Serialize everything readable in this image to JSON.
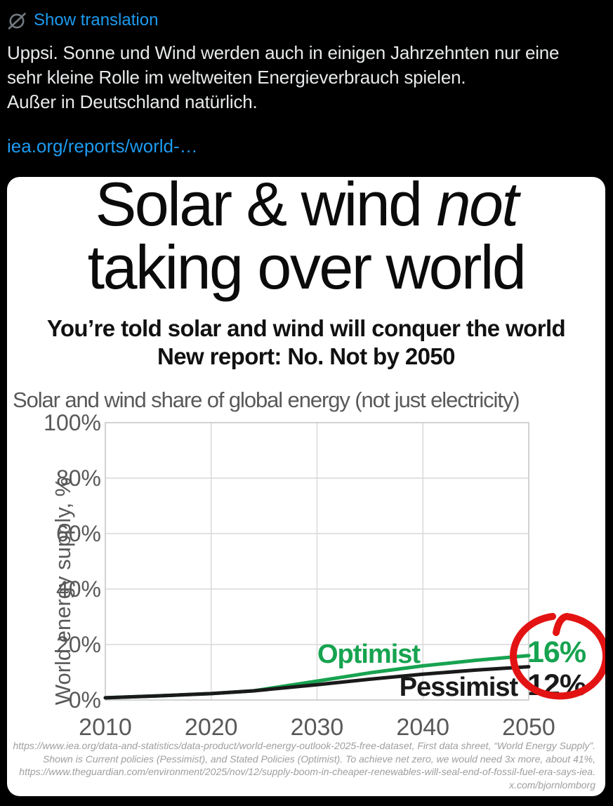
{
  "header": {
    "translation_label": "Show translation"
  },
  "tweet": {
    "line1": "Uppsi. Sonne und Wind werden auch in einigen Jahrzehnten nur eine",
    "line2": "sehr kleine Rolle im weltweiten Energieverbrauch spielen.",
    "line3": "Außer in Deutschland natürlich.",
    "link": "iea.org/reports/world-…"
  },
  "card": {
    "title": {
      "line1_regular": "Solar & wind ",
      "line1_italic": "not",
      "line2": "taking over world"
    },
    "subtitle": {
      "line1": "You’re told solar and wind will conquer the world",
      "line2": "New report: No. Not by 2050"
    },
    "footnote": {
      "line1": "https://www.iea.org/data-and-statistics/data-product/world-energy-outlook-2025-free-dataset, First data shreet, “World Energy Supply”.",
      "line2": "Shown is Current policies (Pessimist), and Stated Policies (Optimist). To achieve net zero, we would need 3x more, about 41%,",
      "line3": "https://www.theguardian.com/environment/2025/nov/12/supply-boom-in-cheaper-renewables-will-seal-end-of-fossil-fuel-era-says-iea.",
      "line4": "x.com/bjornlomborg"
    }
  },
  "chart_data": {
    "type": "line",
    "title": "Solar and wind share of global energy (not just electricity)",
    "xlabel": "",
    "ylabel": "World energy supply, %",
    "xlim": [
      2010,
      2050
    ],
    "ylim": [
      0,
      100
    ],
    "grid": true,
    "legend_position": "inline-labels",
    "x_ticks": [
      {
        "value": 2010,
        "label": "2010"
      },
      {
        "value": 2020,
        "label": "2020"
      },
      {
        "value": 2030,
        "label": "2030"
      },
      {
        "value": 2040,
        "label": "2040"
      },
      {
        "value": 2050,
        "label": "2050"
      }
    ],
    "y_ticks": [
      {
        "value": 0,
        "label": "0%"
      },
      {
        "value": 20,
        "label": "20%"
      },
      {
        "value": 40,
        "label": "40%"
      },
      {
        "value": 60,
        "label": "60%"
      },
      {
        "value": 80,
        "label": "80%"
      },
      {
        "value": 100,
        "label": "100%"
      }
    ],
    "series": [
      {
        "name": "Optimist",
        "color": "#17a350",
        "x": [
          2010,
          2015,
          2020,
          2024,
          2030,
          2035,
          2040,
          2045,
          2050
        ],
        "values": [
          0.8,
          1.5,
          2.3,
          3.3,
          6.8,
          9.8,
          12.3,
          14.3,
          16
        ],
        "end_label": "16%"
      },
      {
        "name": "Pessimist",
        "color": "#1a1a1a",
        "x": [
          2010,
          2015,
          2020,
          2024,
          2030,
          2035,
          2040,
          2045,
          2050
        ],
        "values": [
          0.8,
          1.5,
          2.3,
          3.3,
          5.5,
          7.5,
          9.3,
          10.8,
          12
        ],
        "end_label": "12%"
      }
    ],
    "annotations": {
      "circle_color": "#e31313"
    },
    "style": {
      "grid_color": "#d9d9d9",
      "border_color": "#c9c9c9",
      "axis_text_color": "#595959"
    }
  }
}
